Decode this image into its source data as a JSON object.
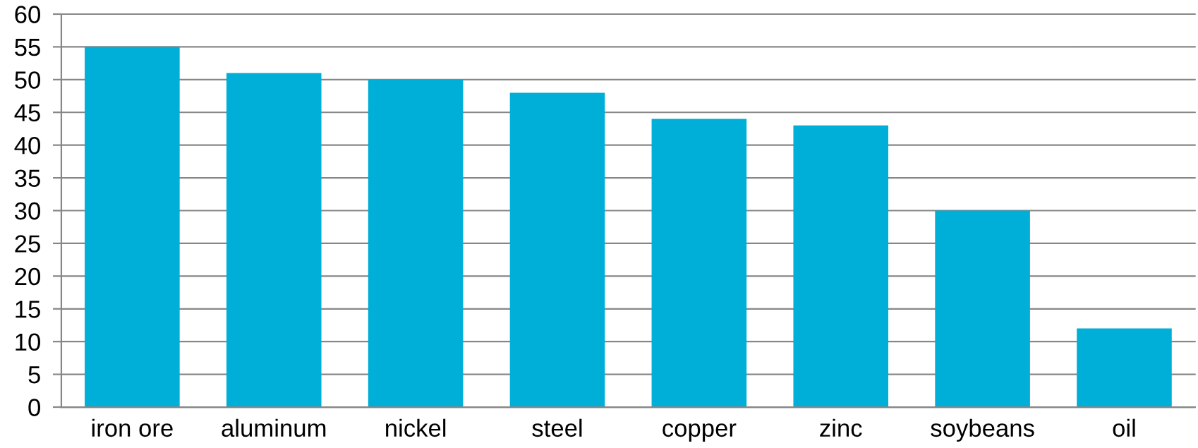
{
  "chart_data": {
    "type": "bar",
    "categories": [
      "iron ore",
      "aluminum",
      "nickel",
      "steel",
      "copper",
      "zinc",
      "soybeans",
      "oil"
    ],
    "values": [
      55,
      51,
      50,
      48,
      44,
      43,
      30,
      12
    ],
    "color": "#00afd8",
    "ylim": [
      0,
      60
    ],
    "yticks": [
      0,
      5,
      10,
      15,
      20,
      25,
      30,
      35,
      40,
      45,
      50,
      55,
      60
    ],
    "grid": "y"
  }
}
